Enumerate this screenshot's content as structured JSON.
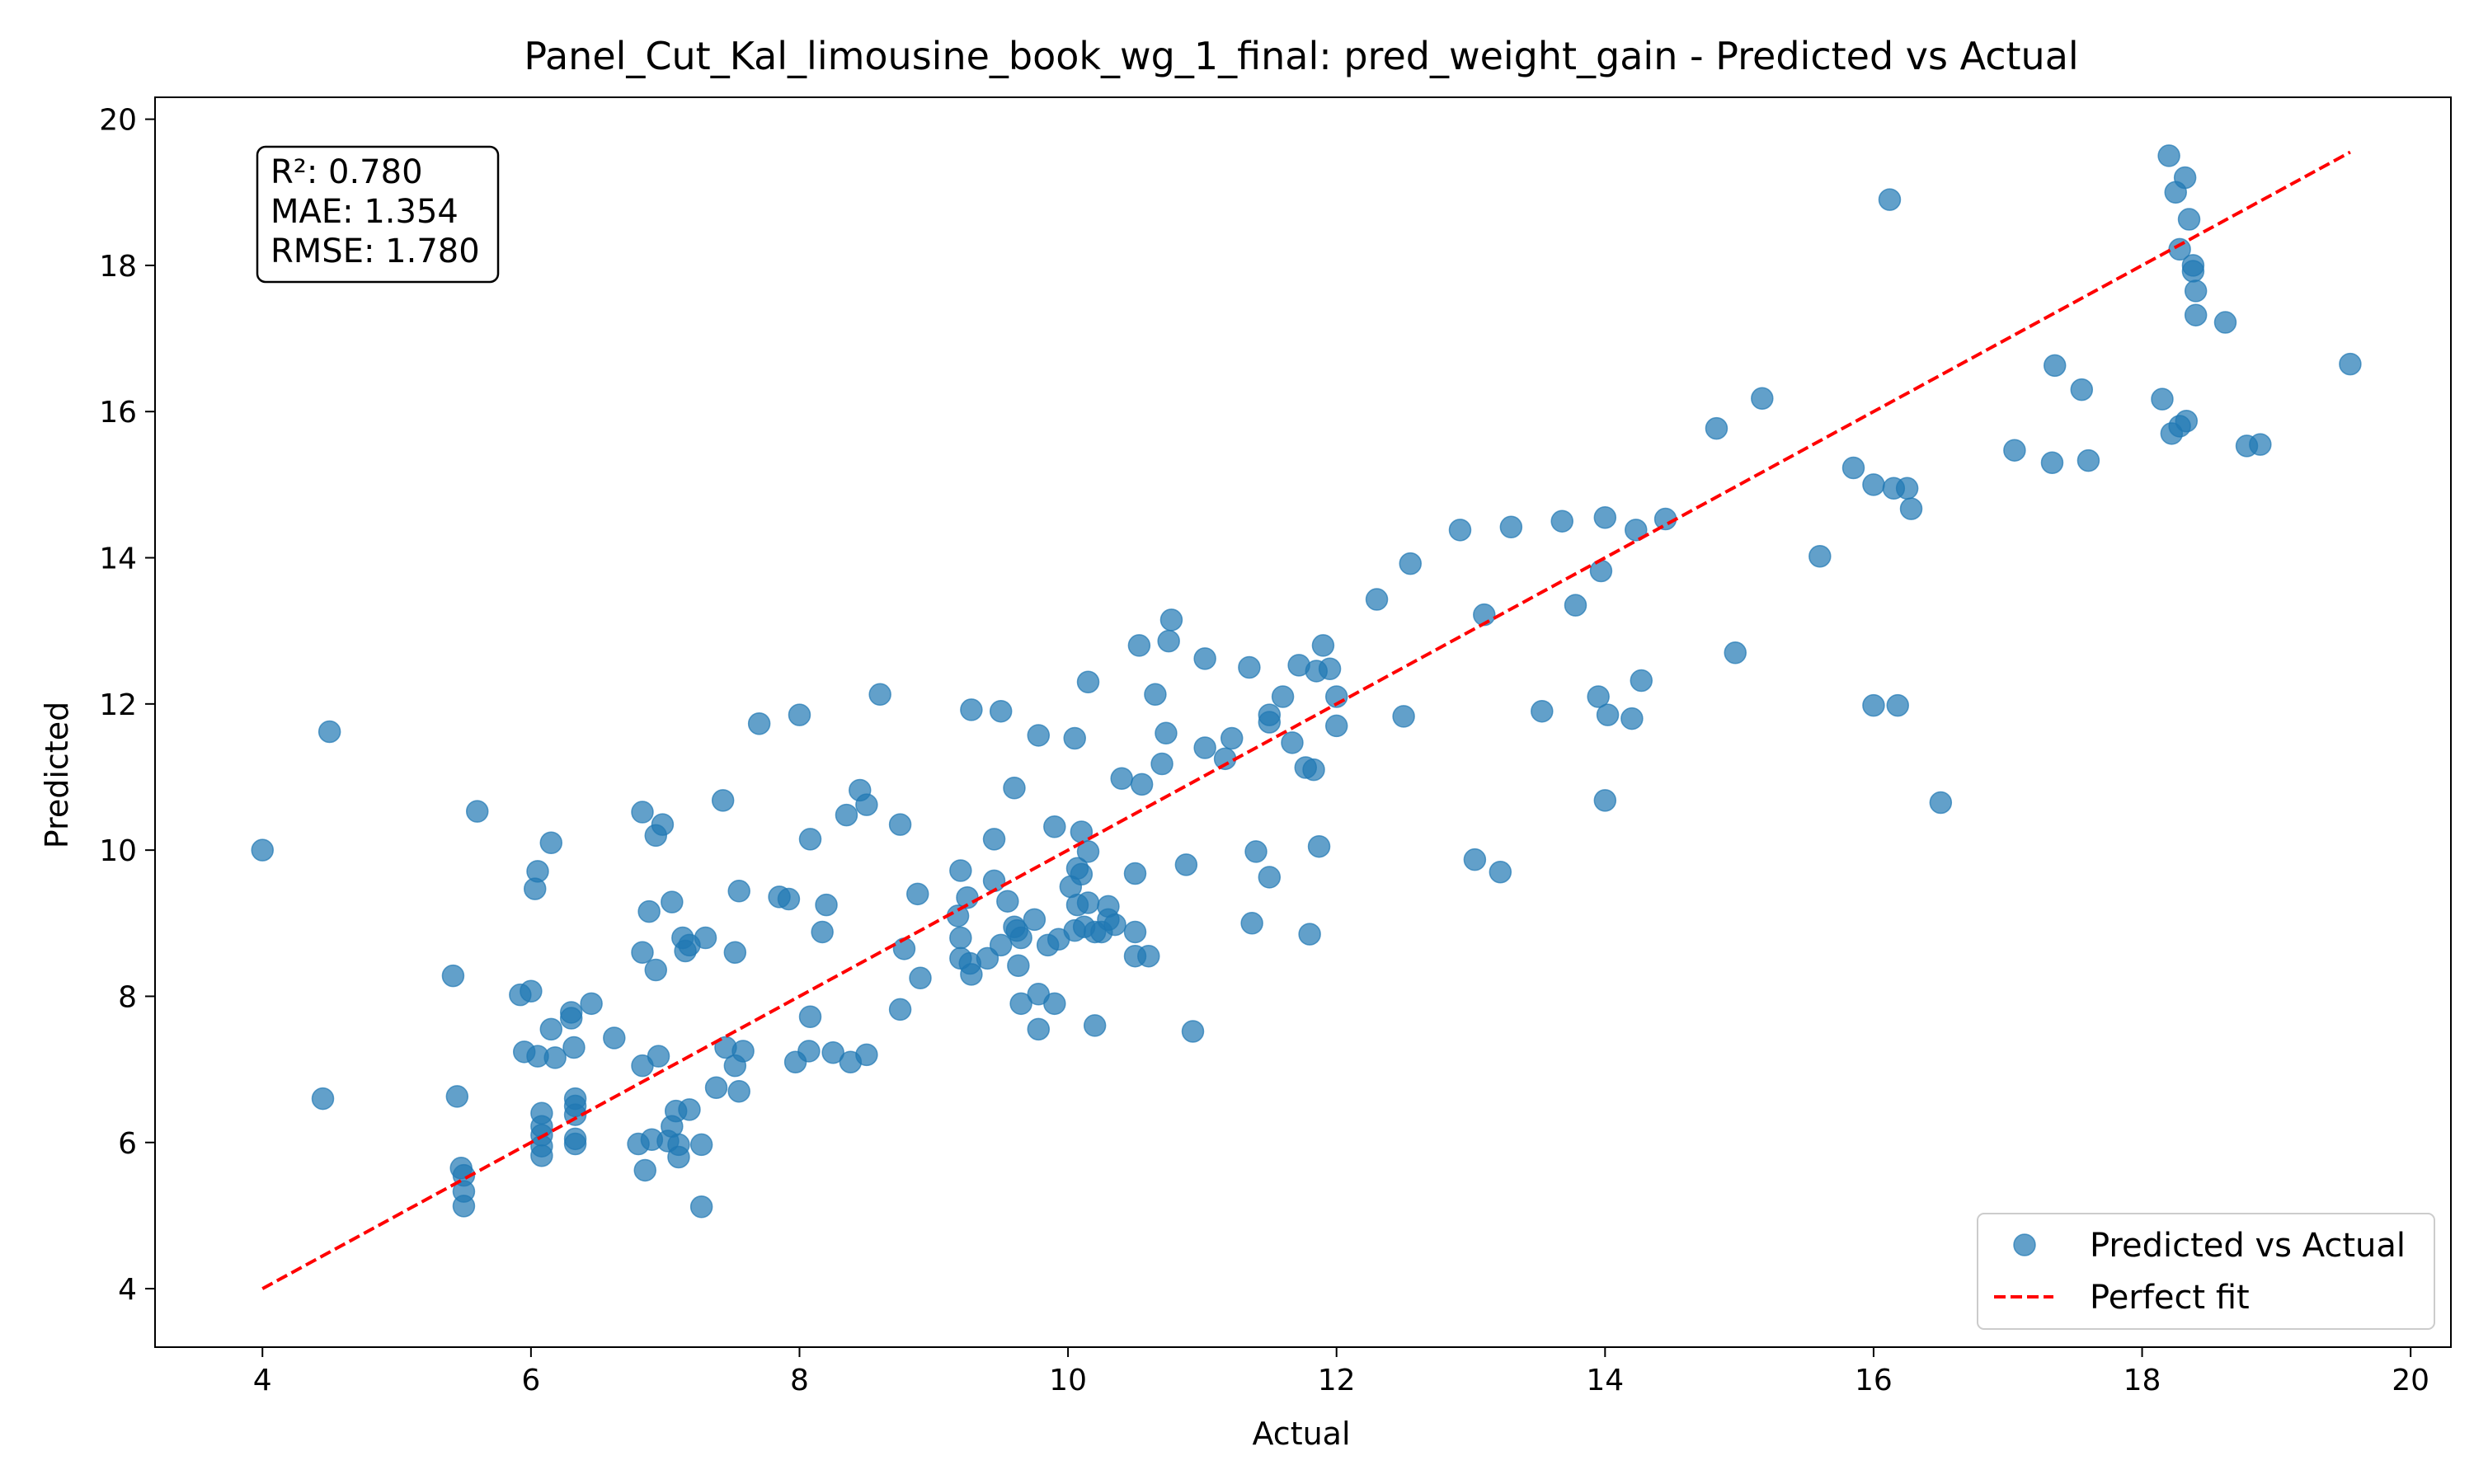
{
  "chart_data": {
    "type": "scatter",
    "title": "Panel_Cut_Kal_limousine_book_wg_1_final: pred_weight_gain - Predicted vs Actual",
    "xlabel": "Actual",
    "ylabel": "Predicted",
    "xlim": [
      3.2,
      20.3
    ],
    "ylim": [
      3.2,
      20.3
    ],
    "xticks": [
      "4",
      "6",
      "8",
      "10",
      "12",
      "14",
      "16",
      "18",
      "20"
    ],
    "yticks": [
      "4",
      "6",
      "8",
      "10",
      "12",
      "14",
      "16",
      "18",
      "20"
    ],
    "grid": false,
    "legend_position": "lower-right",
    "stats_box": {
      "r2": "R²: 0.780",
      "mae": "MAE: 1.354",
      "rmse": "RMSE: 1.780"
    },
    "series": [
      {
        "name": "Predicted vs Actual",
        "kind": "scatter",
        "color": "#1f77b4",
        "points": [
          [
            4.0,
            10.0
          ],
          [
            4.45,
            6.6
          ],
          [
            4.5,
            11.62
          ],
          [
            5.42,
            8.28
          ],
          [
            5.45,
            6.63
          ],
          [
            5.48,
            5.65
          ],
          [
            5.5,
            5.55
          ],
          [
            5.5,
            5.33
          ],
          [
            5.5,
            5.13
          ],
          [
            5.6,
            10.53
          ],
          [
            5.92,
            8.02
          ],
          [
            5.95,
            7.24
          ],
          [
            6.0,
            8.07
          ],
          [
            6.03,
            9.47
          ],
          [
            6.05,
            9.71
          ],
          [
            6.05,
            7.18
          ],
          [
            6.08,
            6.4
          ],
          [
            6.08,
            6.22
          ],
          [
            6.08,
            6.1
          ],
          [
            6.08,
            5.95
          ],
          [
            6.08,
            5.82
          ],
          [
            6.15,
            10.1
          ],
          [
            6.15,
            7.55
          ],
          [
            6.18,
            7.16
          ],
          [
            6.3,
            7.78
          ],
          [
            6.3,
            7.7
          ],
          [
            6.32,
            7.3
          ],
          [
            6.33,
            6.6
          ],
          [
            6.33,
            6.5
          ],
          [
            6.33,
            6.38
          ],
          [
            6.33,
            6.05
          ],
          [
            6.33,
            5.98
          ],
          [
            6.45,
            7.9
          ],
          [
            6.62,
            7.43
          ],
          [
            6.8,
            5.98
          ],
          [
            6.83,
            10.52
          ],
          [
            6.83,
            8.6
          ],
          [
            6.83,
            7.05
          ],
          [
            6.85,
            5.62
          ],
          [
            6.88,
            9.16
          ],
          [
            6.9,
            6.04
          ],
          [
            6.93,
            10.2
          ],
          [
            6.93,
            8.36
          ],
          [
            6.95,
            7.18
          ],
          [
            6.98,
            10.35
          ],
          [
            7.02,
            6.02
          ],
          [
            7.05,
            9.29
          ],
          [
            7.05,
            6.22
          ],
          [
            7.08,
            6.43
          ],
          [
            7.1,
            5.97
          ],
          [
            7.1,
            5.8
          ],
          [
            7.13,
            8.8
          ],
          [
            7.15,
            8.62
          ],
          [
            7.18,
            8.7
          ],
          [
            7.18,
            6.45
          ],
          [
            7.27,
            5.97
          ],
          [
            7.27,
            5.12
          ],
          [
            7.3,
            8.8
          ],
          [
            7.38,
            6.75
          ],
          [
            7.43,
            10.68
          ],
          [
            7.45,
            7.3
          ],
          [
            7.52,
            8.6
          ],
          [
            7.52,
            7.05
          ],
          [
            7.55,
            9.44
          ],
          [
            7.55,
            6.7
          ],
          [
            7.58,
            7.25
          ],
          [
            7.7,
            11.73
          ],
          [
            7.85,
            9.36
          ],
          [
            7.92,
            9.33
          ],
          [
            7.97,
            7.1
          ],
          [
            8.0,
            11.85
          ],
          [
            8.07,
            7.25
          ],
          [
            8.08,
            10.15
          ],
          [
            8.08,
            7.72
          ],
          [
            8.17,
            8.88
          ],
          [
            8.2,
            9.25
          ],
          [
            8.25,
            7.23
          ],
          [
            8.35,
            10.48
          ],
          [
            8.38,
            7.1
          ],
          [
            8.45,
            10.82
          ],
          [
            8.5,
            10.62
          ],
          [
            8.5,
            7.2
          ],
          [
            8.6,
            12.13
          ],
          [
            8.75,
            10.35
          ],
          [
            8.75,
            7.82
          ],
          [
            8.78,
            8.65
          ],
          [
            8.88,
            9.4
          ],
          [
            8.9,
            8.25
          ],
          [
            9.18,
            9.1
          ],
          [
            9.2,
            9.72
          ],
          [
            9.2,
            8.8
          ],
          [
            9.2,
            8.52
          ],
          [
            9.25,
            9.35
          ],
          [
            9.27,
            8.45
          ],
          [
            9.28,
            11.92
          ],
          [
            9.28,
            8.3
          ],
          [
            9.4,
            8.52
          ],
          [
            9.45,
            10.15
          ],
          [
            9.45,
            9.58
          ],
          [
            9.5,
            11.9
          ],
          [
            9.5,
            8.7
          ],
          [
            9.55,
            9.3
          ],
          [
            9.6,
            10.85
          ],
          [
            9.6,
            8.95
          ],
          [
            9.62,
            8.9
          ],
          [
            9.63,
            8.42
          ],
          [
            9.65,
            8.8
          ],
          [
            9.65,
            7.9
          ],
          [
            9.75,
            9.05
          ],
          [
            9.78,
            11.57
          ],
          [
            9.78,
            8.03
          ],
          [
            9.78,
            7.55
          ],
          [
            9.85,
            8.7
          ],
          [
            9.9,
            10.32
          ],
          [
            9.9,
            7.9
          ],
          [
            9.93,
            8.78
          ],
          [
            10.02,
            9.5
          ],
          [
            10.05,
            11.53
          ],
          [
            10.05,
            8.9
          ],
          [
            10.07,
            9.75
          ],
          [
            10.07,
            9.25
          ],
          [
            10.1,
            10.25
          ],
          [
            10.1,
            9.67
          ],
          [
            10.12,
            8.95
          ],
          [
            10.15,
            9.98
          ],
          [
            10.15,
            9.28
          ],
          [
            10.15,
            12.3
          ],
          [
            10.2,
            7.6
          ],
          [
            10.2,
            8.88
          ],
          [
            10.25,
            8.88
          ],
          [
            10.3,
            9.05
          ],
          [
            10.3,
            9.23
          ],
          [
            10.35,
            8.98
          ],
          [
            10.4,
            10.98
          ],
          [
            10.5,
            9.68
          ],
          [
            10.5,
            8.88
          ],
          [
            10.5,
            8.55
          ],
          [
            10.53,
            12.8
          ],
          [
            10.55,
            10.9
          ],
          [
            10.6,
            8.55
          ],
          [
            10.65,
            12.13
          ],
          [
            10.7,
            11.18
          ],
          [
            10.73,
            11.6
          ],
          [
            10.75,
            12.86
          ],
          [
            10.77,
            13.15
          ],
          [
            10.88,
            9.8
          ],
          [
            10.93,
            7.52
          ],
          [
            11.02,
            12.62
          ],
          [
            11.02,
            11.4
          ],
          [
            11.17,
            11.25
          ],
          [
            11.22,
            11.53
          ],
          [
            11.35,
            12.5
          ],
          [
            11.37,
            9.0
          ],
          [
            11.4,
            9.98
          ],
          [
            11.5,
            11.75
          ],
          [
            11.5,
            11.85
          ],
          [
            11.5,
            9.63
          ],
          [
            11.6,
            12.1
          ],
          [
            11.67,
            11.47
          ],
          [
            11.72,
            12.53
          ],
          [
            11.77,
            11.13
          ],
          [
            11.8,
            8.85
          ],
          [
            11.83,
            11.1
          ],
          [
            11.85,
            12.45
          ],
          [
            11.87,
            10.05
          ],
          [
            11.9,
            12.8
          ],
          [
            11.95,
            12.48
          ],
          [
            12.0,
            12.1
          ],
          [
            12.0,
            11.7
          ],
          [
            12.3,
            13.43
          ],
          [
            12.5,
            11.83
          ],
          [
            12.55,
            13.92
          ],
          [
            12.92,
            14.38
          ],
          [
            13.03,
            9.87
          ],
          [
            13.1,
            13.22
          ],
          [
            13.22,
            9.7
          ],
          [
            13.3,
            14.42
          ],
          [
            13.53,
            11.9
          ],
          [
            13.68,
            14.5
          ],
          [
            13.78,
            13.35
          ],
          [
            13.95,
            12.1
          ],
          [
            13.97,
            13.82
          ],
          [
            14.0,
            14.55
          ],
          [
            14.0,
            10.68
          ],
          [
            14.02,
            11.85
          ],
          [
            14.2,
            11.8
          ],
          [
            14.23,
            14.38
          ],
          [
            14.27,
            12.32
          ],
          [
            14.45,
            14.53
          ],
          [
            14.83,
            15.77
          ],
          [
            14.97,
            12.7
          ],
          [
            15.17,
            16.18
          ],
          [
            15.6,
            14.02
          ],
          [
            15.85,
            15.23
          ],
          [
            16.0,
            15.0
          ],
          [
            16.0,
            11.98
          ],
          [
            16.12,
            18.9
          ],
          [
            16.15,
            14.95
          ],
          [
            16.18,
            11.98
          ],
          [
            16.25,
            14.95
          ],
          [
            16.28,
            14.67
          ],
          [
            16.5,
            10.65
          ],
          [
            17.05,
            15.47
          ],
          [
            17.33,
            15.3
          ],
          [
            17.35,
            16.63
          ],
          [
            17.55,
            16.3
          ],
          [
            17.6,
            15.33
          ],
          [
            18.15,
            16.17
          ],
          [
            18.2,
            19.5
          ],
          [
            18.22,
            15.7
          ],
          [
            18.25,
            19.0
          ],
          [
            18.28,
            18.22
          ],
          [
            18.28,
            15.8
          ],
          [
            18.32,
            19.2
          ],
          [
            18.33,
            15.87
          ],
          [
            18.35,
            18.63
          ],
          [
            18.38,
            18.0
          ],
          [
            18.38,
            17.92
          ],
          [
            18.4,
            17.65
          ],
          [
            18.4,
            17.32
          ],
          [
            18.62,
            17.22
          ],
          [
            18.78,
            15.53
          ],
          [
            18.88,
            15.55
          ],
          [
            19.55,
            16.65
          ]
        ]
      },
      {
        "name": "Perfect fit",
        "kind": "line",
        "style": "dashed",
        "color": "#ff0000",
        "points": [
          [
            4.0,
            4.0
          ],
          [
            19.55,
            19.55
          ]
        ]
      }
    ]
  }
}
